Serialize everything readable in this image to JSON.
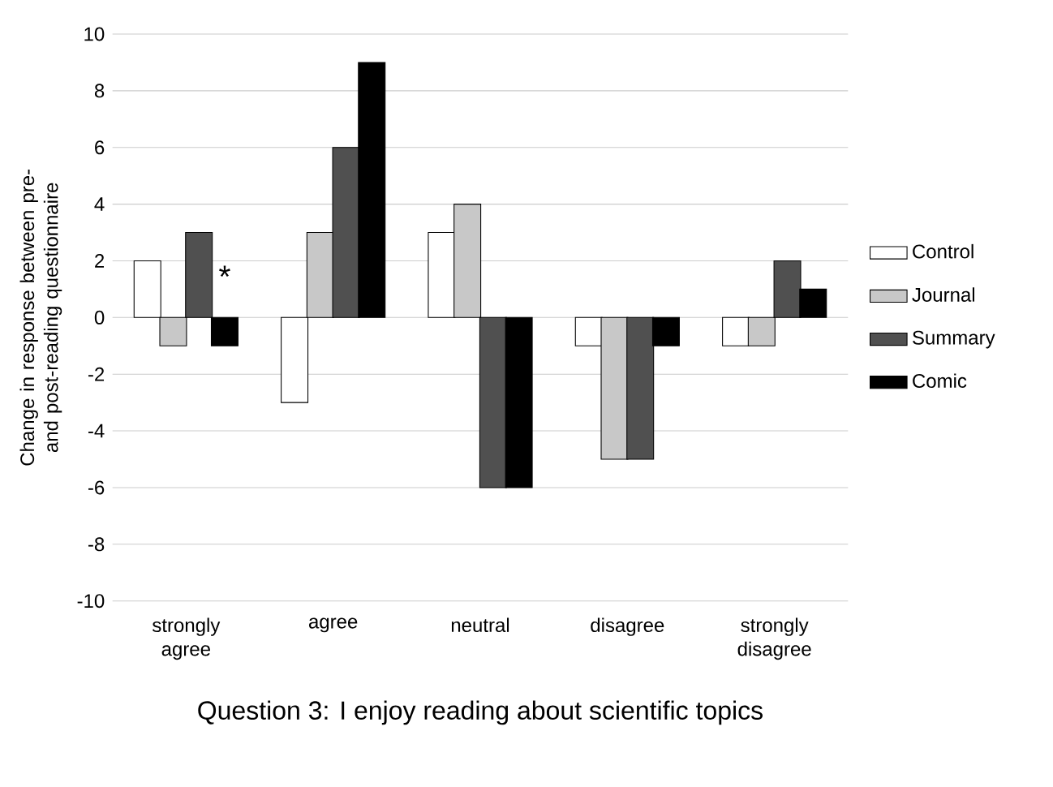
{
  "chart_data": {
    "type": "bar",
    "xlabel": "Question 3: I enjoy reading about scientific topics",
    "ylabel": "Change in response between pre- and post-reading questionnaire",
    "categories": [
      "strongly agree",
      "agree",
      "neutral",
      "disagree",
      "strongly disagree"
    ],
    "series": [
      {
        "name": "Control",
        "color": "#ffffff",
        "values": [
          2,
          -3,
          3,
          -1,
          -1
        ]
      },
      {
        "name": "Journal",
        "color": "#c8c8c8",
        "values": [
          -1,
          3,
          4,
          -5,
          -1
        ]
      },
      {
        "name": "Summary",
        "color": "#505050",
        "values": [
          3,
          6,
          -6,
          -5,
          2
        ]
      },
      {
        "name": "Comic",
        "color": "#000000",
        "values": [
          -1,
          9,
          -6,
          -1,
          1
        ]
      }
    ],
    "ylim": [
      -10,
      10
    ],
    "yticks": [
      -10,
      -8,
      -6,
      -4,
      -2,
      0,
      2,
      4,
      6,
      8,
      10
    ],
    "grid": "y",
    "legend": "right",
    "annotations": [
      {
        "text": "*",
        "x": "strongly agree",
        "y": 0.8
      }
    ]
  }
}
